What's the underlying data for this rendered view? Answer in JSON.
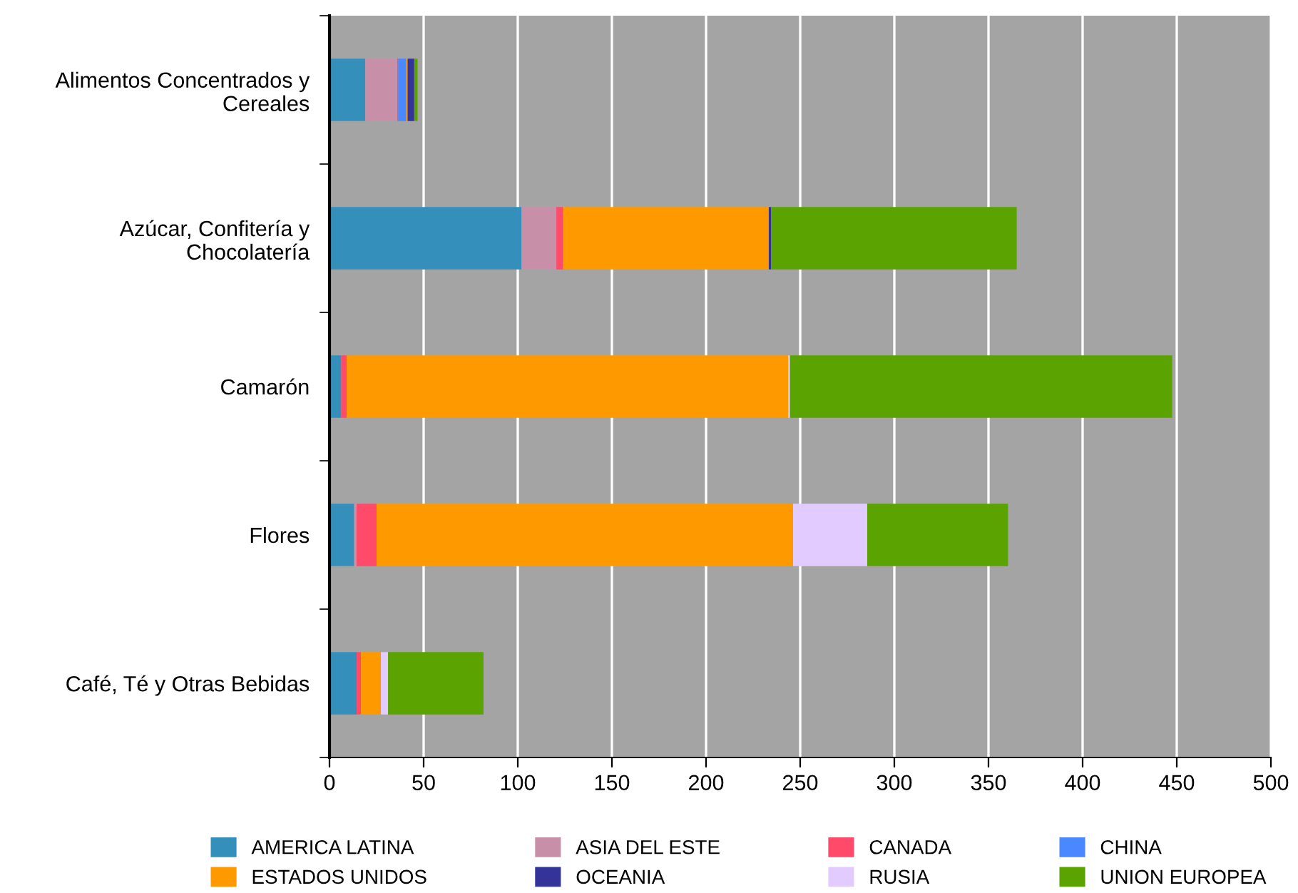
{
  "chart_data": {
    "type": "bar",
    "orientation": "horizontal",
    "stacked": true,
    "categories": [
      "Alimentos Concentrados y\nCereales",
      "Azúcar, Confitería y\nChocolatería",
      "Camarón",
      "Flores",
      "Café, Té y Otras Bebidas"
    ],
    "series": [
      {
        "name": "AMERICA LATINA",
        "color": "#3490bb",
        "values": [
          19,
          102,
          6.2,
          13.1,
          14.4
        ]
      },
      {
        "name": "ASIA DEL ESTE",
        "color": "#c890a8",
        "values": [
          17,
          18.5,
          null,
          1.3,
          null
        ]
      },
      {
        "name": "CANADA",
        "color": "#ff4a6a",
        "values": [
          0.5,
          3.5,
          2.9,
          10.6,
          2.3
        ]
      },
      {
        "name": "CHINA",
        "color": "#4a88ff",
        "values": [
          4.3,
          null,
          null,
          null,
          null
        ]
      },
      {
        "name": "ESTADOS UNIDOS",
        "color": "#ff9900",
        "values": [
          0.7,
          109.3,
          234.5,
          221.2,
          10.6
        ]
      },
      {
        "name": "OCEANIA",
        "color": "#333399",
        "values": [
          3.5,
          1.3,
          null,
          null,
          null
        ]
      },
      {
        "name": "RUSIA",
        "color": "#e2ccff",
        "values": [
          null,
          null,
          1,
          39.4,
          3.8
        ]
      },
      {
        "name": "UNION EUROPEA",
        "color": "#5aa300",
        "values": [
          1.8,
          130.4,
          203,
          74.8,
          50.7
        ]
      }
    ],
    "xlim": [
      0,
      500
    ],
    "xticks": [
      0,
      50,
      100,
      150,
      200,
      250,
      300,
      350,
      400,
      450,
      500
    ],
    "grid": "x",
    "legend": "bottom"
  }
}
